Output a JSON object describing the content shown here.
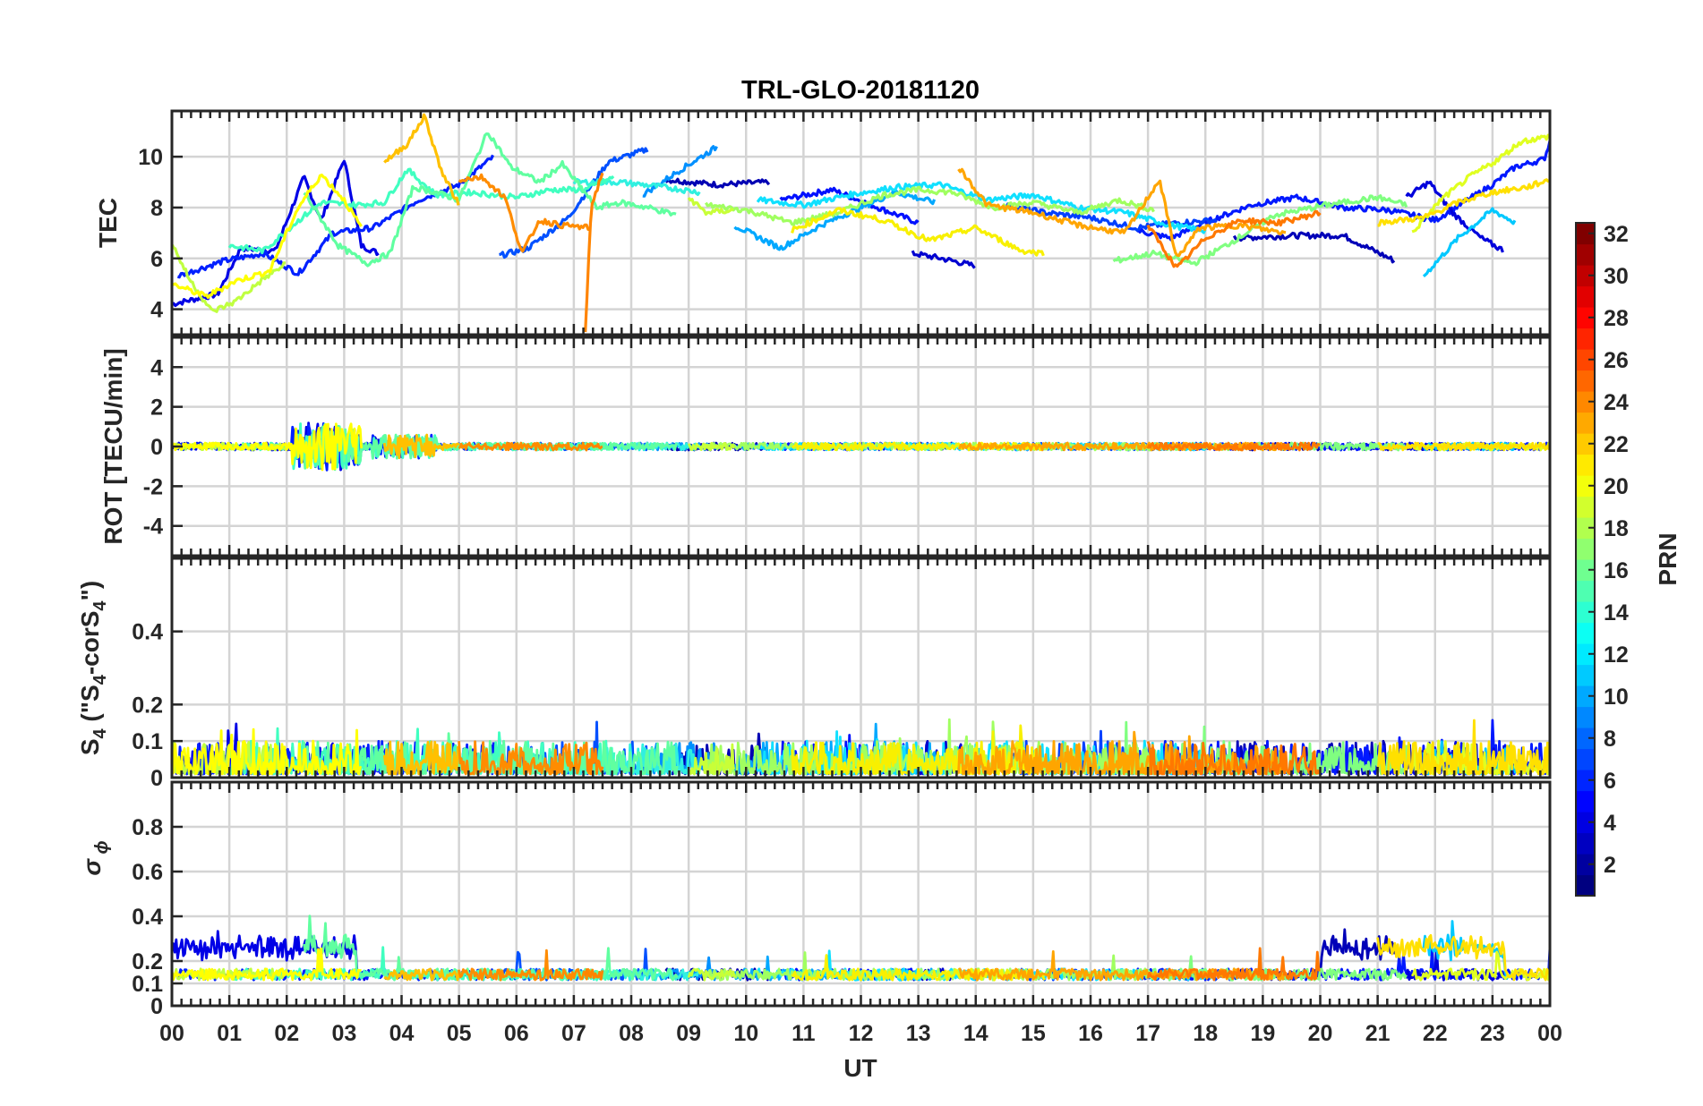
{
  "chart_data": {
    "type": "line",
    "title": "TRL-GLO-20181120",
    "xlabel": "UT",
    "x_ticks": [
      "00",
      "01",
      "02",
      "03",
      "04",
      "05",
      "06",
      "07",
      "08",
      "09",
      "10",
      "11",
      "12",
      "13",
      "14",
      "15",
      "16",
      "17",
      "18",
      "19",
      "20",
      "21",
      "22",
      "23",
      "00"
    ],
    "xlim_hours": [
      0,
      24
    ],
    "grid": true,
    "panels": [
      {
        "id": "tec",
        "ylabel": "TEC",
        "ylim": [
          3,
          11.8
        ],
        "yticks": [
          4,
          6,
          8,
          10
        ],
        "yticklabels": [
          "4",
          "6",
          "8",
          "10"
        ]
      },
      {
        "id": "rot",
        "ylabel": "ROT [TECU/min]",
        "ylim": [
          -5.5,
          5.5
        ],
        "yticks": [
          -4,
          -2,
          0,
          2,
          4
        ],
        "yticklabels": [
          "-4",
          "-2",
          "0",
          "2",
          "4"
        ]
      },
      {
        "id": "s4",
        "ylabel_main": "S",
        "ylabel_sub1": "4",
        "ylabel_mid": " (\"S",
        "ylabel_sub2": "4",
        "ylabel_mid2": "-corS",
        "ylabel_sub3": "4",
        "ylabel_end": "\")",
        "ylim": [
          0,
          0.6
        ],
        "yticks": [
          0,
          0.1,
          0.2,
          0.4
        ],
        "yticklabels": [
          "0",
          "0.1",
          "0.2",
          "0.4"
        ]
      },
      {
        "id": "sigma",
        "ylabel_main": "σ",
        "ylabel_sub": "ϕ",
        "ylim": [
          0,
          1
        ],
        "yticks": [
          0,
          0.1,
          0.2,
          0.4,
          0.6,
          0.8
        ],
        "yticklabels": [
          "0",
          "0.1",
          "0.2",
          "0.4",
          "0.6",
          "0.8"
        ]
      }
    ],
    "colorbar": {
      "label": "PRN",
      "range": [
        1,
        32
      ],
      "ticks": [
        "2",
        "4",
        "6",
        "8",
        "10",
        "12",
        "14",
        "16",
        "18",
        "20",
        "22",
        "24",
        "26",
        "28",
        "30",
        "32"
      ],
      "colormap": "jet"
    },
    "series": [
      {
        "prn": 2,
        "color": "#0000e6",
        "tec": [
          [
            0.0,
            4.2
          ],
          [
            0.8,
            4.6
          ],
          [
            1.2,
            6.4
          ],
          [
            1.8,
            6.3
          ],
          [
            2.3,
            9.2
          ],
          [
            2.6,
            7.5
          ],
          [
            3.0,
            9.9
          ],
          [
            3.3,
            6.5
          ],
          [
            3.6,
            6.2
          ]
        ]
      },
      {
        "prn": 3,
        "color": "#0000b3",
        "tec": [
          [
            8.6,
            9.1
          ],
          [
            9.5,
            8.9
          ],
          [
            10.4,
            9.0
          ]
        ]
      },
      {
        "prn": 4,
        "color": "#0010ff",
        "tec": [
          [
            10.6,
            8.3
          ],
          [
            11.5,
            8.7
          ],
          [
            12.3,
            8.0
          ],
          [
            13.0,
            7.4
          ]
        ]
      },
      {
        "prn": 2,
        "color": "#0000d0",
        "tec": [
          [
            12.9,
            6.2
          ],
          [
            13.4,
            6.0
          ],
          [
            14.0,
            5.7
          ]
        ]
      },
      {
        "prn": 3,
        "color": "#0000b8",
        "tec": [
          [
            18.5,
            6.8
          ],
          [
            19.6,
            6.9
          ],
          [
            20.4,
            6.9
          ],
          [
            21.3,
            5.9
          ]
        ]
      },
      {
        "prn": 5,
        "color": "#0020ff",
        "tec": [
          [
            0.1,
            5.3
          ],
          [
            0.9,
            5.9
          ],
          [
            1.6,
            6.2
          ],
          [
            2.2,
            5.4
          ],
          [
            2.8,
            7.0
          ],
          [
            3.5,
            7.2
          ],
          [
            4.3,
            8.3
          ],
          [
            5.0,
            8.9
          ],
          [
            5.6,
            10.0
          ]
        ]
      },
      {
        "prn": 7,
        "color": "#0050ff",
        "tec": [
          [
            5.7,
            6.1
          ],
          [
            6.2,
            6.4
          ],
          [
            6.9,
            7.6
          ],
          [
            7.6,
            9.8
          ],
          [
            8.3,
            10.3
          ]
        ]
      },
      {
        "prn": 4,
        "color": "#0018ff",
        "tec": [
          [
            16.8,
            7.1
          ],
          [
            17.4,
            6.8
          ],
          [
            18.1,
            7.5
          ],
          [
            18.8,
            8.1
          ],
          [
            19.6,
            8.4
          ],
          [
            20.4,
            8.0
          ],
          [
            21.2,
            7.9
          ],
          [
            22.0,
            7.5
          ],
          [
            22.5,
            8.2
          ],
          [
            23.0,
            8.9
          ],
          [
            23.4,
            9.6
          ],
          [
            23.9,
            9.9
          ],
          [
            24.0,
            10.6
          ]
        ]
      },
      {
        "prn": 6,
        "color": "#0040ff",
        "tec": [
          [
            14.5,
            8.1
          ],
          [
            15.2,
            7.8
          ],
          [
            16.0,
            7.6
          ],
          [
            16.8,
            7.2
          ],
          [
            17.5,
            7.4
          ],
          [
            18.2,
            7.5
          ]
        ]
      },
      {
        "prn": 2,
        "color": "#0000dc",
        "tec": [
          [
            21.5,
            8.4
          ],
          [
            21.9,
            9.0
          ],
          [
            22.3,
            7.8
          ],
          [
            22.8,
            6.8
          ],
          [
            23.2,
            6.3
          ]
        ]
      },
      {
        "prn": 9,
        "color": "#0090ff",
        "tec": [
          [
            8.2,
            8.5
          ],
          [
            8.8,
            9.4
          ],
          [
            9.5,
            10.4
          ]
        ]
      },
      {
        "prn": 10,
        "color": "#00a8ff",
        "tec": [
          [
            9.8,
            7.3
          ],
          [
            10.6,
            6.4
          ],
          [
            11.3,
            7.3
          ],
          [
            12.0,
            8.0
          ],
          [
            12.6,
            8.6
          ],
          [
            13.3,
            8.2
          ]
        ]
      },
      {
        "prn": 11,
        "color": "#00c8ff",
        "tec": [
          [
            21.8,
            5.3
          ],
          [
            22.4,
            6.8
          ],
          [
            23.0,
            7.9
          ],
          [
            23.4,
            7.4
          ]
        ]
      },
      {
        "prn": 12,
        "color": "#10e0ff",
        "tec": [
          [
            10.2,
            8.3
          ],
          [
            11.0,
            8.1
          ],
          [
            11.8,
            8.5
          ],
          [
            12.6,
            8.8
          ],
          [
            13.4,
            8.9
          ],
          [
            14.2,
            8.3
          ],
          [
            15.0,
            8.5
          ],
          [
            15.8,
            8.0
          ],
          [
            16.6,
            7.8
          ],
          [
            17.4,
            7.3
          ],
          [
            18.0,
            7.1
          ]
        ]
      },
      {
        "prn": 13,
        "color": "#30f0e0",
        "tec": [
          [
            7.0,
            9.0
          ],
          [
            7.8,
            9.0
          ],
          [
            8.6,
            8.8
          ],
          [
            9.2,
            8.6
          ]
        ]
      },
      {
        "prn": 14,
        "color": "#40ffc0",
        "tec": [
          [
            1.0,
            6.5
          ],
          [
            1.6,
            6.3
          ],
          [
            2.1,
            7.3
          ],
          [
            2.6,
            8.2
          ],
          [
            3.2,
            8.1
          ],
          [
            3.7,
            8.2
          ],
          [
            4.1,
            9.5
          ],
          [
            4.6,
            8.5
          ],
          [
            5.2,
            8.6
          ],
          [
            6.0,
            8.4
          ],
          [
            6.6,
            8.7
          ],
          [
            7.2,
            8.7
          ],
          [
            7.7,
            9.2
          ]
        ]
      },
      {
        "prn": 15,
        "color": "#60ffa0",
        "tec": [
          [
            2.3,
            8.6
          ],
          [
            2.9,
            6.5
          ],
          [
            3.4,
            5.8
          ],
          [
            3.8,
            6.2
          ],
          [
            4.2,
            8.8
          ],
          [
            4.6,
            8.6
          ],
          [
            5.0,
            8.3
          ],
          [
            5.5,
            11.0
          ],
          [
            5.9,
            9.6
          ],
          [
            6.4,
            9.0
          ],
          [
            6.8,
            9.7
          ],
          [
            7.4,
            8.0
          ],
          [
            7.8,
            8.2
          ],
          [
            8.3,
            8.0
          ],
          [
            8.8,
            7.7
          ]
        ]
      },
      {
        "prn": 16,
        "color": "#80ff80",
        "tec": [
          [
            16.4,
            5.9
          ],
          [
            17.1,
            6.2
          ],
          [
            17.8,
            5.8
          ],
          [
            18.5,
            6.7
          ],
          [
            19.2,
            7.7
          ],
          [
            20.1,
            8.1
          ],
          [
            21.0,
            8.4
          ],
          [
            21.5,
            8.1
          ]
        ]
      },
      {
        "prn": 17,
        "color": "#a0ff60",
        "tec": [
          [
            9.3,
            8.1
          ],
          [
            10.0,
            7.9
          ],
          [
            10.8,
            7.4
          ],
          [
            11.6,
            7.8
          ],
          [
            12.4,
            8.5
          ],
          [
            13.0,
            8.7
          ],
          [
            13.6,
            8.6
          ],
          [
            14.3,
            8.0
          ],
          [
            15.0,
            8.2
          ],
          [
            15.8,
            7.8
          ],
          [
            16.5,
            8.3
          ],
          [
            17.1,
            7.9
          ]
        ]
      },
      {
        "prn": 18,
        "color": "#c0ff40",
        "tec": [
          [
            0.0,
            6.6
          ],
          [
            0.3,
            5.2
          ],
          [
            0.7,
            3.9
          ],
          [
            1.1,
            4.3
          ],
          [
            1.6,
            5.2
          ],
          [
            2.0,
            5.8
          ]
        ]
      },
      {
        "prn": 18,
        "color": "#c8ff38",
        "tec": [
          [
            9.0,
            8.4
          ],
          [
            9.3,
            7.8
          ],
          [
            9.8,
            7.9
          ]
        ]
      },
      {
        "prn": 19,
        "color": "#e0ff20",
        "tec": [
          [
            21.6,
            7.0
          ],
          [
            22.1,
            8.3
          ],
          [
            22.6,
            9.2
          ],
          [
            23.1,
            9.9
          ],
          [
            23.5,
            10.6
          ],
          [
            24.0,
            10.8
          ]
        ]
      },
      {
        "prn": 20,
        "color": "#ffff00",
        "tec": [
          [
            0.0,
            5.0
          ],
          [
            0.6,
            4.5
          ],
          [
            1.1,
            5.1
          ],
          [
            1.7,
            5.5
          ],
          [
            2.2,
            8.0
          ],
          [
            2.6,
            9.3
          ],
          [
            3.0,
            8.3
          ],
          [
            3.3,
            7.2
          ]
        ]
      },
      {
        "prn": 20,
        "color": "#f8f000",
        "tec": [
          [
            10.8,
            7.1
          ],
          [
            11.6,
            7.9
          ],
          [
            12.4,
            7.5
          ],
          [
            13.2,
            6.7
          ],
          [
            14.0,
            7.2
          ],
          [
            14.8,
            6.3
          ],
          [
            15.2,
            6.2
          ]
        ]
      },
      {
        "prn": 21,
        "color": "#ffe000",
        "tec": [
          [
            21.0,
            7.4
          ],
          [
            21.8,
            7.6
          ],
          [
            22.4,
            8.2
          ],
          [
            23.0,
            8.6
          ],
          [
            23.6,
            8.8
          ],
          [
            24.0,
            9.1
          ]
        ]
      },
      {
        "prn": 22,
        "color": "#ffc000",
        "tec": [
          [
            3.7,
            9.8
          ],
          [
            4.1,
            10.5
          ],
          [
            4.4,
            11.6
          ],
          [
            4.7,
            9.4
          ],
          [
            5.0,
            8.1
          ]
        ]
      },
      {
        "prn": 23,
        "color": "#ffa500",
        "tec": [
          [
            13.7,
            9.6
          ],
          [
            14.2,
            8.1
          ],
          [
            15.0,
            7.8
          ],
          [
            15.8,
            7.3
          ],
          [
            16.6,
            7.0
          ],
          [
            17.2,
            9.1
          ],
          [
            17.5,
            6.0
          ],
          [
            17.9,
            7.2
          ],
          [
            18.6,
            7.3
          ],
          [
            19.4,
            7.0
          ]
        ]
      },
      {
        "prn": 24,
        "color": "#ff8c00",
        "tec": [
          [
            5.0,
            9.1
          ],
          [
            5.4,
            9.2
          ],
          [
            5.8,
            8.4
          ],
          [
            6.1,
            6.2
          ],
          [
            6.4,
            7.5
          ],
          [
            6.8,
            7.3
          ],
          [
            7.3,
            7.2
          ]
        ]
      },
      {
        "prn": 24,
        "color": "#ff8400",
        "tec": [
          [
            7.2,
            3.0
          ],
          [
            7.3,
            8.0
          ],
          [
            7.5,
            9.4
          ]
        ]
      },
      {
        "prn": 25,
        "color": "#ff7800",
        "tec": [
          [
            17.0,
            7.3
          ],
          [
            17.5,
            5.6
          ],
          [
            18.0,
            6.8
          ],
          [
            18.6,
            7.5
          ],
          [
            19.3,
            7.4
          ],
          [
            20.0,
            7.8
          ]
        ]
      }
    ]
  }
}
